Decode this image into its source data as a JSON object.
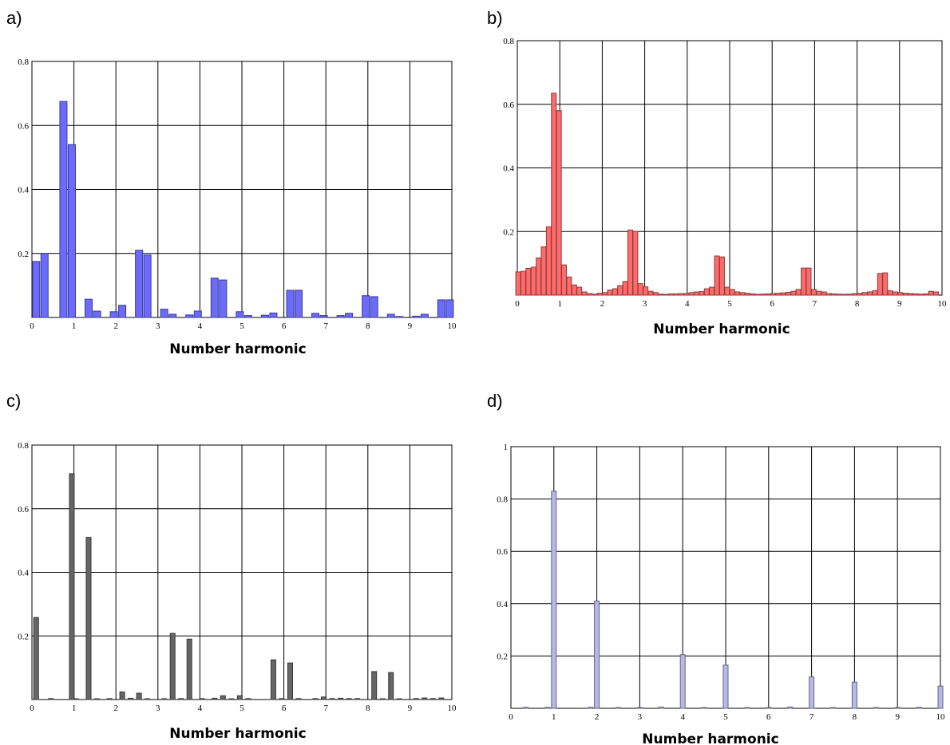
{
  "panels": [
    {
      "label": "a)"
    },
    {
      "label": "b)"
    },
    {
      "label": "c)"
    },
    {
      "label": "d)"
    }
  ],
  "chart_data": [
    {
      "type": "bar",
      "title": "",
      "xlabel": "Number harmonic",
      "ylabel": "",
      "xlim": [
        0,
        10
      ],
      "ylim": [
        0,
        0.8
      ],
      "xticks": [
        "0",
        "1",
        "2",
        "3",
        "4",
        "5",
        "6",
        "7",
        "8",
        "9",
        "10"
      ],
      "yticks": [
        "0.2",
        "0.4",
        "0.6",
        "0.8"
      ],
      "grid": true,
      "color": "#6b6bff",
      "x": [
        0.1,
        0.3,
        0.75,
        0.95,
        1.35,
        1.55,
        1.95,
        2.15,
        2.55,
        2.75,
        3.15,
        3.35,
        3.75,
        3.95,
        4.35,
        4.55,
        4.95,
        5.15,
        5.55,
        5.75,
        6.15,
        6.35,
        6.75,
        6.95,
        7.35,
        7.55,
        7.95,
        8.15,
        8.55,
        8.75,
        9.15,
        9.35,
        9.75,
        9.95
      ],
      "values": [
        0.175,
        0.2,
        0.675,
        0.54,
        0.057,
        0.02,
        0.018,
        0.038,
        0.21,
        0.195,
        0.026,
        0.01,
        0.008,
        0.02,
        0.123,
        0.117,
        0.018,
        0.006,
        0.007,
        0.014,
        0.085,
        0.085,
        0.013,
        0.006,
        0.006,
        0.013,
        0.068,
        0.065,
        0.01,
        0.003,
        0.004,
        0.01,
        0.055,
        0.055
      ]
    },
    {
      "type": "bar",
      "title": "",
      "xlabel": "Number harmonic",
      "ylabel": "",
      "xlim": [
        0,
        10
      ],
      "ylim": [
        0,
        0.8
      ],
      "xticks": [
        "0",
        "1",
        "2",
        "3",
        "4",
        "5",
        "6",
        "7",
        "8",
        "9",
        "10"
      ],
      "yticks": [
        "0.2",
        "0.4",
        "0.6",
        "0.8"
      ],
      "grid": true,
      "color": "#ff6b6b",
      "x": [
        0.02,
        0.14,
        0.26,
        0.38,
        0.5,
        0.62,
        0.74,
        0.86,
        0.98,
        1.1,
        1.22,
        1.34,
        1.46,
        1.58,
        1.7,
        1.82,
        1.94,
        2.06,
        2.18,
        2.3,
        2.42,
        2.54,
        2.66,
        2.78,
        2.9,
        3.02,
        3.14,
        3.26,
        3.38,
        3.5,
        3.62,
        3.74,
        3.86,
        3.98,
        4.1,
        4.22,
        4.34,
        4.46,
        4.58,
        4.7,
        4.82,
        4.94,
        5.06,
        5.18,
        5.3,
        5.42,
        5.54,
        5.66,
        5.78,
        5.9,
        6.02,
        6.14,
        6.26,
        6.38,
        6.5,
        6.62,
        6.74,
        6.86,
        6.98,
        7.1,
        7.22,
        7.34,
        7.46,
        7.58,
        7.7,
        7.82,
        7.94,
        8.06,
        8.18,
        8.3,
        8.42,
        8.54,
        8.66,
        8.78,
        8.9,
        9.02,
        9.14,
        9.26,
        9.38,
        9.5,
        9.62,
        9.74,
        9.86
      ],
      "values": [
        0.073,
        0.075,
        0.084,
        0.088,
        0.117,
        0.152,
        0.215,
        0.635,
        0.58,
        0.095,
        0.057,
        0.032,
        0.025,
        0.01,
        0.005,
        0.003,
        0.006,
        0.008,
        0.016,
        0.02,
        0.03,
        0.043,
        0.205,
        0.2,
        0.036,
        0.026,
        0.012,
        0.008,
        0.003,
        0.002,
        0.004,
        0.004,
        0.005,
        0.005,
        0.008,
        0.01,
        0.011,
        0.02,
        0.025,
        0.123,
        0.12,
        0.025,
        0.018,
        0.01,
        0.008,
        0.006,
        0.004,
        0.002,
        0.003,
        0.004,
        0.005,
        0.006,
        0.007,
        0.009,
        0.012,
        0.018,
        0.085,
        0.085,
        0.018,
        0.012,
        0.01,
        0.005,
        0.004,
        0.003,
        0.002,
        0.003,
        0.005,
        0.006,
        0.008,
        0.01,
        0.014,
        0.068,
        0.07,
        0.014,
        0.01,
        0.008,
        0.006,
        0.005,
        0.004,
        0.003,
        0.004,
        0.012,
        0.01
      ]
    },
    {
      "type": "bar",
      "title": "",
      "xlabel": "Number harmonic",
      "ylabel": "",
      "xlim": [
        0,
        10
      ],
      "ylim": [
        0,
        0.8
      ],
      "xticks": [
        "0",
        "1",
        "2",
        "3",
        "4",
        "5",
        "6",
        "7",
        "8",
        "9",
        "10"
      ],
      "yticks": [
        "0.2",
        "0.4",
        "0.6",
        "0.8"
      ],
      "grid": true,
      "color": "#666666",
      "x": [
        0.1,
        0.45,
        0.95,
        1.05,
        1.35,
        1.55,
        1.85,
        2.15,
        2.35,
        2.55,
        2.75,
        3.15,
        3.35,
        3.55,
        3.75,
        4.05,
        4.35,
        4.55,
        4.75,
        4.95,
        5.15,
        5.75,
        5.95,
        6.15,
        6.35,
        6.75,
        6.95,
        7.15,
        7.35,
        7.55,
        7.75,
        8.15,
        8.35,
        8.55,
        8.75,
        9.15,
        9.35,
        9.55,
        9.75
      ],
      "values": [
        0.258,
        0.003,
        0.71,
        0.002,
        0.51,
        0.002,
        0.003,
        0.024,
        0.004,
        0.02,
        0.002,
        0.002,
        0.208,
        0.003,
        0.19,
        0.003,
        0.004,
        0.012,
        0.002,
        0.012,
        0.003,
        0.125,
        0.003,
        0.115,
        0.003,
        0.003,
        0.008,
        0.003,
        0.004,
        0.003,
        0.003,
        0.088,
        0.002,
        0.085,
        0.002,
        0.003,
        0.005,
        0.003,
        0.005
      ]
    },
    {
      "type": "bar",
      "title": "",
      "xlabel": "Number harmonic",
      "ylabel": "",
      "xlim": [
        0,
        10
      ],
      "ylim": [
        0,
        1
      ],
      "xticks": [
        "0",
        "1",
        "2",
        "3",
        "4",
        "5",
        "6",
        "7",
        "8",
        "9",
        "10"
      ],
      "yticks": [
        "0.2",
        "0.4",
        "0.6",
        "0.8",
        "1"
      ],
      "grid": true,
      "color": "#b7b7e8",
      "x": [
        0.35,
        0.85,
        1.0,
        1.85,
        2.0,
        2.5,
        3.0,
        3.5,
        4.0,
        4.5,
        5.0,
        5.5,
        6.0,
        6.5,
        7.0,
        7.5,
        8.0,
        8.5,
        9.0,
        9.5,
        10.0
      ],
      "values": [
        0.004,
        0.004,
        0.83,
        0.004,
        0.41,
        0.002,
        0.002,
        0.005,
        0.205,
        0.002,
        0.165,
        0.002,
        0.002,
        0.005,
        0.12,
        0.002,
        0.1,
        0.002,
        0.002,
        0.004,
        0.085
      ]
    }
  ]
}
